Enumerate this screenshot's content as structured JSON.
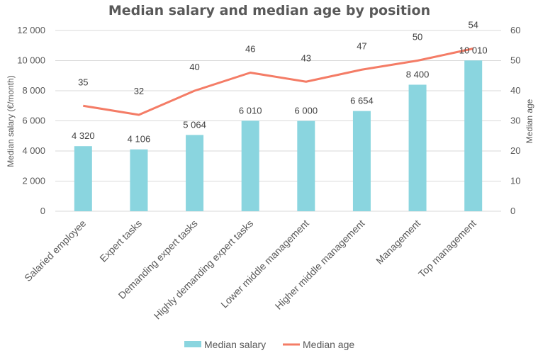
{
  "chart_data": {
    "type": "bar+line",
    "title": "Median salary and median age by position",
    "categories": [
      "Salaried employee",
      "Expert tasks",
      "Demanding expert tasks",
      "Highly demanding expert tasks",
      "Lower middle management",
      "Higher middle management",
      "Management",
      "Top management"
    ],
    "series": [
      {
        "name": "Median salary",
        "type": "bar",
        "axis": "left",
        "color": "#8AD5DF",
        "values": [
          4320,
          4106,
          5064,
          6010,
          6000,
          6654,
          8400,
          10010
        ],
        "labels": [
          "4 320",
          "4 106",
          "5 064",
          "6 010",
          "6 000",
          "6 654",
          "8 400",
          "10 010"
        ]
      },
      {
        "name": "Median age",
        "type": "line",
        "axis": "right",
        "color": "#F47C66",
        "values": [
          35,
          32,
          40,
          46,
          43,
          47,
          50,
          54
        ],
        "labels": [
          "35",
          "32",
          "40",
          "46",
          "43",
          "47",
          "50",
          "54"
        ]
      }
    ],
    "ylabel_left": "Median salary  (€/month)",
    "ylabel_right": "Median age",
    "ylim_left": [
      0,
      12000
    ],
    "ylim_right": [
      0,
      60
    ],
    "yticks_left": [
      "0",
      "2 000",
      "4 000",
      "6 000",
      "8 000",
      "10 000",
      "12 000"
    ],
    "yticks_right": [
      "0",
      "10",
      "20",
      "30",
      "40",
      "50",
      "60"
    ],
    "grid": true,
    "legend": "bottom"
  }
}
